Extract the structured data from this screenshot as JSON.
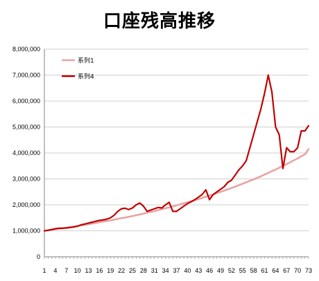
{
  "chart_data": {
    "type": "line",
    "title": "口座残高推移",
    "xlabel": "",
    "ylabel": "",
    "ylim": [
      0,
      8000000
    ],
    "yticks": [
      0,
      1000000,
      2000000,
      3000000,
      4000000,
      5000000,
      6000000,
      7000000,
      8000000
    ],
    "ytick_labels": [
      "0",
      "1,000,000",
      "2,000,000",
      "3,000,000",
      "4,000,000",
      "5,000,000",
      "6,000,000",
      "7,000,000",
      "8,000,000"
    ],
    "xlim": [
      1,
      73
    ],
    "xtick_labels": [
      "1",
      "4",
      "7",
      "10",
      "13",
      "16",
      "19",
      "22",
      "25",
      "28",
      "31",
      "34",
      "37",
      "40",
      "43",
      "46",
      "49",
      "52",
      "55",
      "58",
      "61",
      "64",
      "67",
      "70",
      "73"
    ],
    "grid": true,
    "legend_position": "top-left",
    "x": [
      1,
      2,
      3,
      4,
      5,
      6,
      7,
      8,
      9,
      10,
      11,
      12,
      13,
      14,
      15,
      16,
      17,
      18,
      19,
      20,
      21,
      22,
      23,
      24,
      25,
      26,
      27,
      28,
      29,
      30,
      31,
      32,
      33,
      34,
      35,
      36,
      37,
      38,
      39,
      40,
      41,
      42,
      43,
      44,
      45,
      46,
      47,
      48,
      49,
      50,
      51,
      52,
      53,
      54,
      55,
      56,
      57,
      58,
      59,
      60,
      61,
      62,
      63,
      64,
      65,
      66,
      67,
      68,
      69,
      70,
      71,
      72,
      73
    ],
    "series": [
      {
        "name": "系列1",
        "color": "#e8a3a3",
        "values": [
          1000000,
          1020000,
          1040000,
          1060000,
          1080000,
          1100000,
          1120000,
          1140000,
          1160000,
          1180000,
          1210000,
          1230000,
          1250000,
          1280000,
          1300000,
          1330000,
          1350000,
          1380000,
          1400000,
          1430000,
          1460000,
          1490000,
          1510000,
          1540000,
          1570000,
          1600000,
          1630000,
          1660000,
          1700000,
          1730000,
          1760000,
          1800000,
          1830000,
          1870000,
          1900000,
          1940000,
          1980000,
          2020000,
          2060000,
          2100000,
          2140000,
          2180000,
          2220000,
          2270000,
          2310000,
          2360000,
          2400000,
          2450000,
          2500000,
          2550000,
          2600000,
          2650000,
          2700000,
          2760000,
          2810000,
          2870000,
          2930000,
          2980000,
          3040000,
          3100000,
          3170000,
          3230000,
          3300000,
          3360000,
          3430000,
          3500000,
          3570000,
          3640000,
          3720000,
          3790000,
          3870000,
          3950000,
          4150000
        ]
      },
      {
        "name": "系列4",
        "color": "#c00000",
        "values": [
          1000000,
          1020000,
          1050000,
          1080000,
          1100000,
          1100000,
          1110000,
          1130000,
          1150000,
          1180000,
          1230000,
          1260000,
          1300000,
          1330000,
          1370000,
          1400000,
          1420000,
          1450000,
          1500000,
          1600000,
          1750000,
          1850000,
          1870000,
          1820000,
          1880000,
          2000000,
          2070000,
          1950000,
          1750000,
          1800000,
          1850000,
          1900000,
          1880000,
          2000000,
          2100000,
          1750000,
          1750000,
          1850000,
          1950000,
          2050000,
          2120000,
          2200000,
          2300000,
          2400000,
          2580000,
          2200000,
          2400000,
          2500000,
          2600000,
          2700000,
          2870000,
          2950000,
          3150000,
          3350000,
          3500000,
          3700000,
          4200000,
          4700000,
          5200000,
          5700000,
          6300000,
          7000000,
          6350000,
          5000000,
          4700000,
          3400000,
          4200000,
          4050000,
          4050000,
          4200000,
          4850000,
          4850000,
          5050000
        ]
      }
    ]
  }
}
